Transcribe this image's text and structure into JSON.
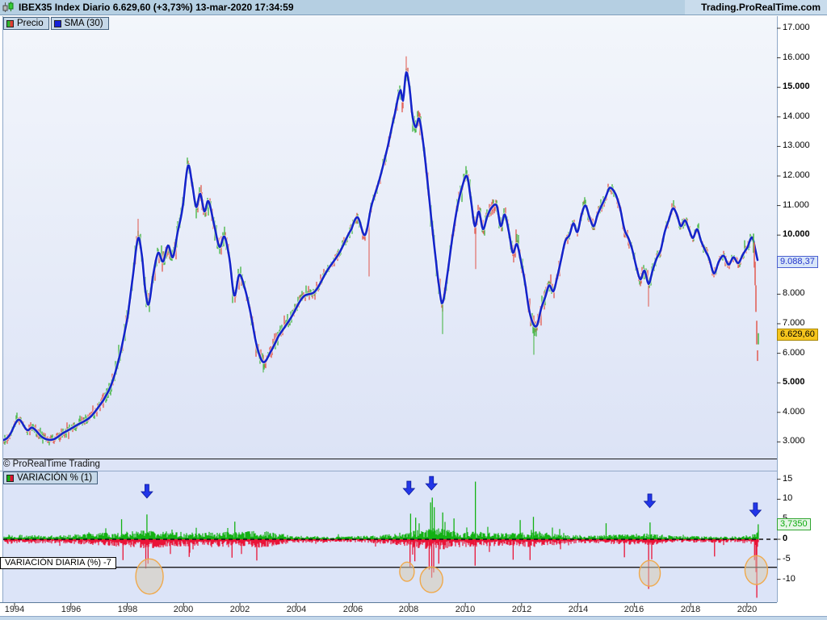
{
  "header": {
    "title": "IBEX35 Index Diario 6.629,60 (+3,73%) 13-mar-2020 17:34:59",
    "brand": "Trading.ProRealTime.com"
  },
  "main_chart": {
    "legend_price": "Precio",
    "legend_sma": "SMA (30)",
    "watermark": "© ProRealTime Trading",
    "badge_sma": "9.088,37",
    "badge_price": "6.629,60"
  },
  "indicator_panel": {
    "legend": "VARIACIÓN % (1)",
    "badge": "3,7350",
    "threshold_label": "VARIACIÓN DIARIA (%) -7"
  },
  "axes": {
    "price_ticks": [
      {
        "v": 17000,
        "label": "17.000",
        "bold": false
      },
      {
        "v": 16000,
        "label": "16.000",
        "bold": false
      },
      {
        "v": 15000,
        "label": "15.000",
        "bold": true
      },
      {
        "v": 14000,
        "label": "14.000",
        "bold": false
      },
      {
        "v": 13000,
        "label": "13.000",
        "bold": false
      },
      {
        "v": 12000,
        "label": "12.000",
        "bold": false
      },
      {
        "v": 11000,
        "label": "11.000",
        "bold": false
      },
      {
        "v": 10000,
        "label": "10.000",
        "bold": true
      },
      {
        "v": 8000,
        "label": "8.000",
        "bold": false
      },
      {
        "v": 7000,
        "label": "7.000",
        "bold": false
      },
      {
        "v": 6000,
        "label": "6.000",
        "bold": false
      },
      {
        "v": 5000,
        "label": "5.000",
        "bold": true
      },
      {
        "v": 4000,
        "label": "4.000",
        "bold": false
      },
      {
        "v": 3000,
        "label": "3.000",
        "bold": false
      }
    ],
    "pct_ticks": [
      {
        "v": 15,
        "label": "15",
        "bold": false
      },
      {
        "v": 10,
        "label": "10",
        "bold": false
      },
      {
        "v": 5,
        "label": "5",
        "bold": false
      },
      {
        "v": 0,
        "label": "0",
        "bold": true
      },
      {
        "v": -5,
        "label": "-5",
        "bold": false
      },
      {
        "v": -10,
        "label": "-10",
        "bold": false
      }
    ],
    "years": [
      "1994",
      "1996",
      "1998",
      "2000",
      "2002",
      "2004",
      "2006",
      "2008",
      "2010",
      "2012",
      "2014",
      "2016",
      "2018",
      "2020"
    ]
  },
  "colors": {
    "candle_up": "#4db84d",
    "candle_down": "#e2635a",
    "sma": "#1525cb",
    "var_up": "#13b113",
    "var_down": "#e91437",
    "arrow": "#2236e8",
    "arrow_edge": "#0d1b9e",
    "circle_stroke": "#f0a94c",
    "circle_fill": "#d6cbb4"
  },
  "chart_data": {
    "type": "candlestick+line",
    "title": "IBEX35 Index Diario",
    "legend_position": "top-left",
    "grid": false,
    "x_range_years": [
      1993.55,
      2020.45
    ],
    "price_axis": {
      "min": 2500,
      "max": 17400
    },
    "pct_axis": {
      "min": -16,
      "max": 17
    },
    "last_price": 6629.6,
    "last_change_pct": 3.73,
    "last_sma30": 9088.37,
    "threshold_pct": -7,
    "sma30_series": [
      [
        1993.55,
        3050
      ],
      [
        1993.8,
        3200
      ],
      [
        1994.14,
        3750
      ],
      [
        1994.45,
        3400
      ],
      [
        1994.63,
        3480
      ],
      [
        1995.0,
        3150
      ],
      [
        1995.35,
        3080
      ],
      [
        1995.72,
        3300
      ],
      [
        1996.2,
        3560
      ],
      [
        1996.7,
        3850
      ],
      [
        1997.15,
        4400
      ],
      [
        1997.44,
        4950
      ],
      [
        1997.73,
        5900
      ],
      [
        1998.01,
        7200
      ],
      [
        1998.2,
        8600
      ],
      [
        1998.39,
        9900
      ],
      [
        1998.53,
        9250
      ],
      [
        1998.64,
        8150
      ],
      [
        1998.76,
        7650
      ],
      [
        1998.93,
        8700
      ],
      [
        1999.1,
        9400
      ],
      [
        1999.27,
        9100
      ],
      [
        1999.45,
        9650
      ],
      [
        1999.62,
        9250
      ],
      [
        1999.79,
        10100
      ],
      [
        1999.96,
        10900
      ],
      [
        2000.16,
        12350
      ],
      [
        2000.31,
        11700
      ],
      [
        2000.45,
        10950
      ],
      [
        2000.59,
        11400
      ],
      [
        2000.74,
        10800
      ],
      [
        2000.88,
        11150
      ],
      [
        2001.11,
        10250
      ],
      [
        2001.28,
        9600
      ],
      [
        2001.45,
        9950
      ],
      [
        2001.63,
        9200
      ],
      [
        2001.8,
        7950
      ],
      [
        2001.97,
        8650
      ],
      [
        2002.14,
        8300
      ],
      [
        2002.37,
        7400
      ],
      [
        2002.6,
        6250
      ],
      [
        2002.83,
        5700
      ],
      [
        2003.09,
        6050
      ],
      [
        2003.38,
        6600
      ],
      [
        2003.81,
        7200
      ],
      [
        2004.24,
        7900
      ],
      [
        2004.67,
        8100
      ],
      [
        2005.1,
        8800
      ],
      [
        2005.53,
        9400
      ],
      [
        2005.96,
        10200
      ],
      [
        2006.18,
        10600
      ],
      [
        2006.44,
        10000
      ],
      [
        2006.67,
        11000
      ],
      [
        2006.96,
        11900
      ],
      [
        2007.25,
        13000
      ],
      [
        2007.5,
        14100
      ],
      [
        2007.7,
        14900
      ],
      [
        2007.79,
        14550
      ],
      [
        2007.9,
        15500
      ],
      [
        2008.02,
        15000
      ],
      [
        2008.13,
        14000
      ],
      [
        2008.25,
        13650
      ],
      [
        2008.36,
        13950
      ],
      [
        2008.51,
        13100
      ],
      [
        2008.65,
        11900
      ],
      [
        2008.79,
        10600
      ],
      [
        2008.94,
        9300
      ],
      [
        2009.08,
        8200
      ],
      [
        2009.19,
        7700
      ],
      [
        2009.37,
        8700
      ],
      [
        2009.54,
        9900
      ],
      [
        2009.71,
        10900
      ],
      [
        2009.88,
        11600
      ],
      [
        2010.06,
        12000
      ],
      [
        2010.2,
        11200
      ],
      [
        2010.34,
        10300
      ],
      [
        2010.48,
        10800
      ],
      [
        2010.63,
        10200
      ],
      [
        2010.77,
        10600
      ],
      [
        2010.91,
        10900
      ],
      [
        2011.12,
        11000
      ],
      [
        2011.26,
        10300
      ],
      [
        2011.4,
        10700
      ],
      [
        2011.55,
        10100
      ],
      [
        2011.69,
        9400
      ],
      [
        2011.83,
        9700
      ],
      [
        2011.98,
        9100
      ],
      [
        2012.12,
        8400
      ],
      [
        2012.26,
        7500
      ],
      [
        2012.41,
        7000
      ],
      [
        2012.55,
        6950
      ],
      [
        2012.69,
        7500
      ],
      [
        2012.84,
        7900
      ],
      [
        2012.98,
        8300
      ],
      [
        2013.13,
        8100
      ],
      [
        2013.27,
        8600
      ],
      [
        2013.41,
        9200
      ],
      [
        2013.55,
        9800
      ],
      [
        2013.7,
        10000
      ],
      [
        2013.84,
        10400
      ],
      [
        2013.98,
        10100
      ],
      [
        2014.13,
        10700
      ],
      [
        2014.27,
        11000
      ],
      [
        2014.41,
        10600
      ],
      [
        2014.56,
        10300
      ],
      [
        2014.7,
        10700
      ],
      [
        2014.84,
        11000
      ],
      [
        2014.99,
        11300
      ],
      [
        2015.13,
        11600
      ],
      [
        2015.33,
        11400
      ],
      [
        2015.5,
        10900
      ],
      [
        2015.65,
        10200
      ],
      [
        2015.79,
        9900
      ],
      [
        2015.93,
        9500
      ],
      [
        2016.08,
        8900
      ],
      [
        2016.22,
        8500
      ],
      [
        2016.36,
        8800
      ],
      [
        2016.51,
        8350
      ],
      [
        2016.65,
        8800
      ],
      [
        2016.79,
        9200
      ],
      [
        2016.94,
        9500
      ],
      [
        2017.08,
        10100
      ],
      [
        2017.22,
        10500
      ],
      [
        2017.37,
        10900
      ],
      [
        2017.51,
        10700
      ],
      [
        2017.65,
        10300
      ],
      [
        2017.8,
        10500
      ],
      [
        2017.94,
        10200
      ],
      [
        2018.08,
        9900
      ],
      [
        2018.23,
        10200
      ],
      [
        2018.37,
        9800
      ],
      [
        2018.51,
        9500
      ],
      [
        2018.66,
        9200
      ],
      [
        2018.83,
        8700
      ],
      [
        2019.0,
        9100
      ],
      [
        2019.17,
        9300
      ],
      [
        2019.35,
        9000
      ],
      [
        2019.52,
        9250
      ],
      [
        2019.69,
        9050
      ],
      [
        2019.86,
        9350
      ],
      [
        2020.03,
        9600
      ],
      [
        2020.12,
        9850
      ],
      [
        2020.2,
        9900
      ],
      [
        2020.3,
        9500
      ],
      [
        2020.4,
        9088
      ]
    ],
    "volatility_envelope_pts": [
      [
        1993.55,
        110
      ],
      [
        1996.5,
        130
      ],
      [
        1997.5,
        210
      ],
      [
        1998.8,
        260
      ],
      [
        2000.2,
        230
      ],
      [
        2001.8,
        220
      ],
      [
        2003.0,
        190
      ],
      [
        2004.5,
        120
      ],
      [
        2006.0,
        130
      ],
      [
        2007.3,
        180
      ],
      [
        2008.2,
        240
      ],
      [
        2008.9,
        310
      ],
      [
        2009.6,
        220
      ],
      [
        2010.4,
        230
      ],
      [
        2011.5,
        200
      ],
      [
        2012.5,
        230
      ],
      [
        2013.5,
        150
      ],
      [
        2014.5,
        140
      ],
      [
        2015.8,
        170
      ],
      [
        2016.5,
        190
      ],
      [
        2017.5,
        120
      ],
      [
        2018.5,
        130
      ],
      [
        2019.5,
        110
      ],
      [
        2020.1,
        170
      ],
      [
        2020.4,
        220
      ]
    ],
    "extreme_wicks": [
      {
        "yr": 1998.4,
        "v": 10550,
        "c": "r"
      },
      {
        "yr": 2002.83,
        "v": 5350,
        "c": "g"
      },
      {
        "yr": 2006.6,
        "v": 8600,
        "c": "r"
      },
      {
        "yr": 2007.9,
        "v": 16050,
        "c": "r"
      },
      {
        "yr": 2009.19,
        "v": 6650,
        "c": "g"
      },
      {
        "yr": 2010.36,
        "v": 8850,
        "c": "r"
      },
      {
        "yr": 2012.43,
        "v": 5950,
        "c": "g"
      },
      {
        "yr": 2016.51,
        "v": 7580,
        "c": "r"
      }
    ],
    "final_candles": [
      {
        "yr": 2020.23,
        "hi": 10050,
        "lo": 9400,
        "c": "g"
      },
      {
        "yr": 2020.26,
        "hi": 9750,
        "lo": 8900,
        "c": "r"
      },
      {
        "yr": 2020.29,
        "hi": 9100,
        "lo": 8300,
        "c": "r"
      },
      {
        "yr": 2020.32,
        "hi": 8300,
        "lo": 7400,
        "c": "r"
      },
      {
        "yr": 2020.35,
        "hi": 7100,
        "lo": 6300,
        "c": "r"
      },
      {
        "yr": 2020.38,
        "hi": 6100,
        "lo": 5740,
        "c": "r"
      },
      {
        "yr": 2020.4,
        "hi": 6680,
        "lo": 6300,
        "c": "g"
      }
    ],
    "variation_envelope_pct": [
      [
        1993.55,
        1.2
      ],
      [
        1995.5,
        1.0
      ],
      [
        1997.3,
        1.7
      ],
      [
        1998.8,
        2.3
      ],
      [
        2000.2,
        1.8
      ],
      [
        2001.75,
        2.0
      ],
      [
        2002.8,
        2.1
      ],
      [
        2004.0,
        0.9
      ],
      [
        2005.5,
        0.7
      ],
      [
        2007.3,
        1.2
      ],
      [
        2008.5,
        2.6
      ],
      [
        2008.9,
        3.2
      ],
      [
        2009.6,
        2.0
      ],
      [
        2010.4,
        1.9
      ],
      [
        2011.3,
        1.6
      ],
      [
        2012.0,
        1.9
      ],
      [
        2012.6,
        2.0
      ],
      [
        2013.8,
        1.1
      ],
      [
        2015.0,
        1.1
      ],
      [
        2015.9,
        1.4
      ],
      [
        2016.6,
        1.5
      ],
      [
        2017.5,
        0.8
      ],
      [
        2018.8,
        0.9
      ],
      [
        2019.6,
        0.7
      ],
      [
        2020.05,
        1.1
      ],
      [
        2020.4,
        2.2
      ]
    ],
    "variation_spikes_up": [
      [
        1997.8,
        5.0
      ],
      [
        1998.7,
        6.2
      ],
      [
        2001.82,
        4.4
      ],
      [
        2008.06,
        6.4
      ],
      [
        2008.24,
        5.4
      ],
      [
        2008.77,
        9.2
      ],
      [
        2008.83,
        10.4
      ],
      [
        2008.9,
        8.0
      ],
      [
        2009.2,
        6.7
      ],
      [
        2009.6,
        5.2
      ],
      [
        2010.36,
        14.4
      ],
      [
        2011.95,
        4.8
      ],
      [
        2012.42,
        5.6
      ],
      [
        2015.0,
        4.0
      ],
      [
        2016.56,
        4.2
      ],
      [
        2020.4,
        3.74
      ]
    ],
    "variation_spikes_down": [
      [
        1997.85,
        -5.2
      ],
      [
        1998.66,
        -7.3
      ],
      [
        1998.74,
        -6.1
      ],
      [
        2000.2,
        -4.4
      ],
      [
        2001.72,
        -4.6
      ],
      [
        2002.6,
        -5.3
      ],
      [
        2008.04,
        -6.9
      ],
      [
        2008.21,
        -5.5
      ],
      [
        2008.72,
        -7.6
      ],
      [
        2008.81,
        -9.6
      ],
      [
        2008.88,
        -8.3
      ],
      [
        2009.06,
        -6.1
      ],
      [
        2010.35,
        -6.6
      ],
      [
        2011.7,
        -5.1
      ],
      [
        2012.3,
        -5.2
      ],
      [
        2015.65,
        -4.5
      ],
      [
        2016.51,
        -12.4
      ],
      [
        2016.62,
        -5.0
      ],
      [
        2018.85,
        -4.3
      ],
      [
        2020.27,
        -5.2
      ],
      [
        2020.32,
        -8.2
      ],
      [
        2020.35,
        -14.6
      ]
    ],
    "annotations": {
      "arrows_down": [
        {
          "yr": 1998.7,
          "top_pct": 13.7
        },
        {
          "yr": 2008.0,
          "top_pct": 14.5
        },
        {
          "yr": 2008.8,
          "top_pct": 15.7
        },
        {
          "yr": 2016.55,
          "top_pct": 11.3
        },
        {
          "yr": 2020.3,
          "top_pct": 9.1
        }
      ],
      "circles": [
        {
          "yr": 1998.79,
          "c_pct": -9.3,
          "rx": 17,
          "ry_pct": 4.4
        },
        {
          "yr": 2007.93,
          "c_pct": -8.1,
          "rx": 9,
          "ry_pct": 2.4
        },
        {
          "yr": 2008.8,
          "c_pct": -10.1,
          "rx": 14,
          "ry_pct": 3.2
        },
        {
          "yr": 2016.55,
          "c_pct": -8.5,
          "rx": 13,
          "ry_pct": 3.2
        },
        {
          "yr": 2020.33,
          "c_pct": -7.7,
          "rx": 14,
          "ry_pct": 3.6
        }
      ]
    }
  }
}
